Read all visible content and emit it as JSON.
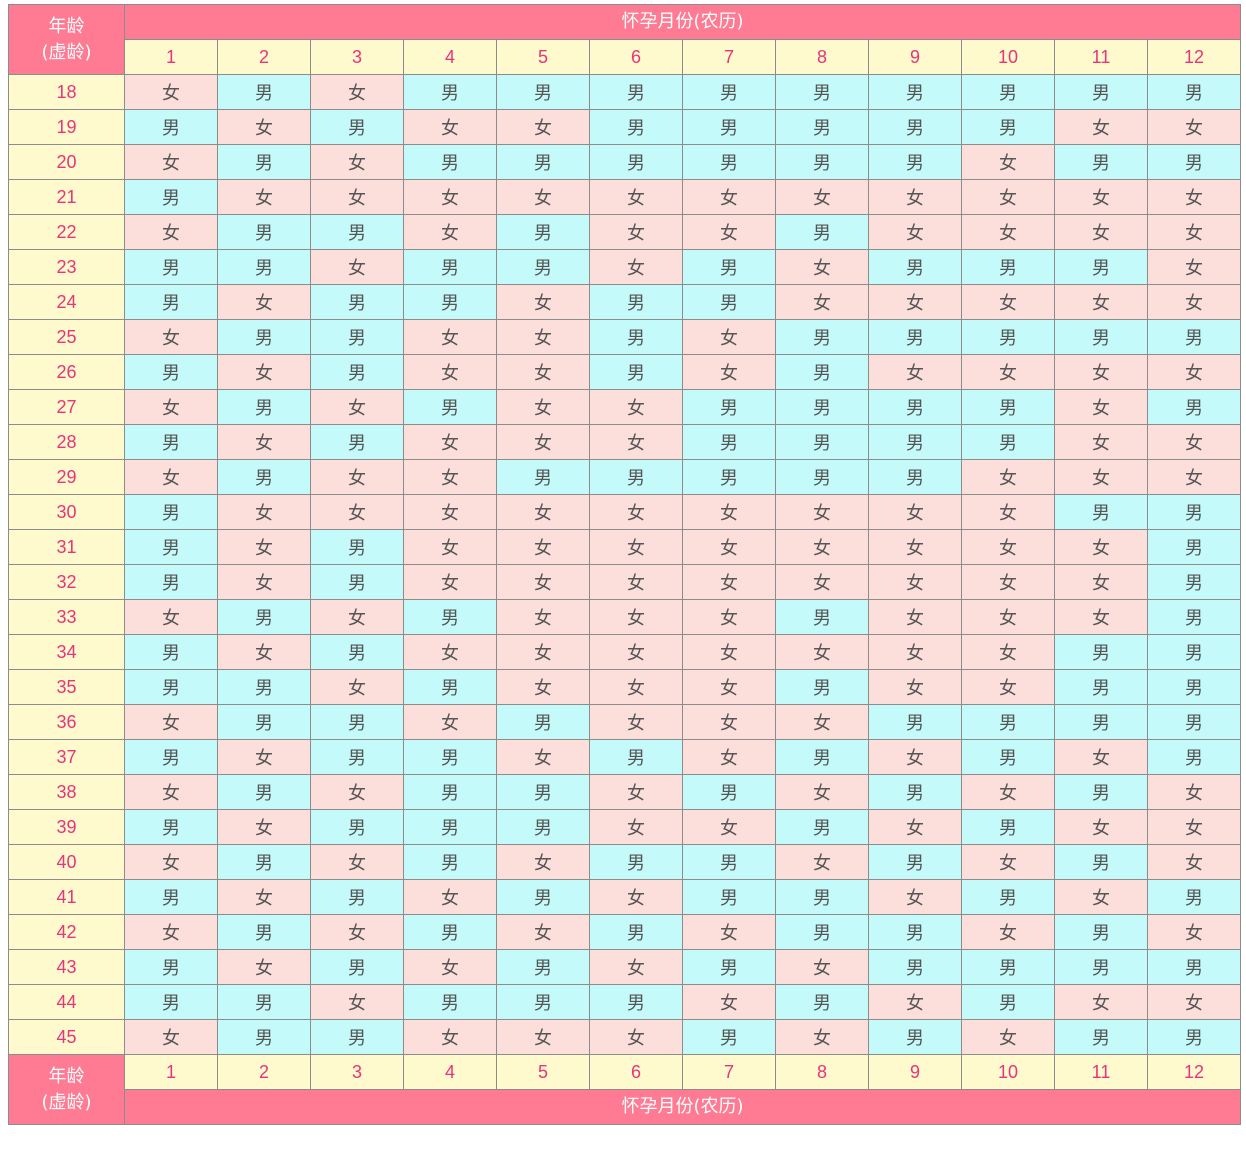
{
  "header": {
    "age_label_line1": "年龄",
    "age_label_line2": "(虚龄)",
    "month_title": "怀孕月份(农历)"
  },
  "months": [
    "1",
    "2",
    "3",
    "4",
    "5",
    "6",
    "7",
    "8",
    "9",
    "10",
    "11",
    "12"
  ],
  "legend": {
    "boy": "男",
    "girl": "女",
    "boy_color": "#c4fafa",
    "girl_color": "#fcdedb",
    "header_color": "#ff7a93",
    "label_bg": "#fffacd",
    "label_color": "#e8347a"
  },
  "rows": [
    {
      "age": "18",
      "cells": [
        "女",
        "男",
        "女",
        "男",
        "男",
        "男",
        "男",
        "男",
        "男",
        "男",
        "男",
        "男"
      ]
    },
    {
      "age": "19",
      "cells": [
        "男",
        "女",
        "男",
        "女",
        "女",
        "男",
        "男",
        "男",
        "男",
        "男",
        "女",
        "女"
      ]
    },
    {
      "age": "20",
      "cells": [
        "女",
        "男",
        "女",
        "男",
        "男",
        "男",
        "男",
        "男",
        "男",
        "女",
        "男",
        "男"
      ]
    },
    {
      "age": "21",
      "cells": [
        "男",
        "女",
        "女",
        "女",
        "女",
        "女",
        "女",
        "女",
        "女",
        "女",
        "女",
        "女"
      ]
    },
    {
      "age": "22",
      "cells": [
        "女",
        "男",
        "男",
        "女",
        "男",
        "女",
        "女",
        "男",
        "女",
        "女",
        "女",
        "女"
      ]
    },
    {
      "age": "23",
      "cells": [
        "男",
        "男",
        "女",
        "男",
        "男",
        "女",
        "男",
        "女",
        "男",
        "男",
        "男",
        "女"
      ]
    },
    {
      "age": "24",
      "cells": [
        "男",
        "女",
        "男",
        "男",
        "女",
        "男",
        "男",
        "女",
        "女",
        "女",
        "女",
        "女"
      ]
    },
    {
      "age": "25",
      "cells": [
        "女",
        "男",
        "男",
        "女",
        "女",
        "男",
        "女",
        "男",
        "男",
        "男",
        "男",
        "男"
      ]
    },
    {
      "age": "26",
      "cells": [
        "男",
        "女",
        "男",
        "女",
        "女",
        "男",
        "女",
        "男",
        "女",
        "女",
        "女",
        "女"
      ]
    },
    {
      "age": "27",
      "cells": [
        "女",
        "男",
        "女",
        "男",
        "女",
        "女",
        "男",
        "男",
        "男",
        "男",
        "女",
        "男"
      ]
    },
    {
      "age": "28",
      "cells": [
        "男",
        "女",
        "男",
        "女",
        "女",
        "女",
        "男",
        "男",
        "男",
        "男",
        "女",
        "女"
      ]
    },
    {
      "age": "29",
      "cells": [
        "女",
        "男",
        "女",
        "女",
        "男",
        "男",
        "男",
        "男",
        "男",
        "女",
        "女",
        "女"
      ]
    },
    {
      "age": "30",
      "cells": [
        "男",
        "女",
        "女",
        "女",
        "女",
        "女",
        "女",
        "女",
        "女",
        "女",
        "男",
        "男"
      ]
    },
    {
      "age": "31",
      "cells": [
        "男",
        "女",
        "男",
        "女",
        "女",
        "女",
        "女",
        "女",
        "女",
        "女",
        "女",
        "男"
      ]
    },
    {
      "age": "32",
      "cells": [
        "男",
        "女",
        "男",
        "女",
        "女",
        "女",
        "女",
        "女",
        "女",
        "女",
        "女",
        "男"
      ]
    },
    {
      "age": "33",
      "cells": [
        "女",
        "男",
        "女",
        "男",
        "女",
        "女",
        "女",
        "男",
        "女",
        "女",
        "女",
        "男"
      ]
    },
    {
      "age": "34",
      "cells": [
        "男",
        "女",
        "男",
        "女",
        "女",
        "女",
        "女",
        "女",
        "女",
        "女",
        "男",
        "男"
      ]
    },
    {
      "age": "35",
      "cells": [
        "男",
        "男",
        "女",
        "男",
        "女",
        "女",
        "女",
        "男",
        "女",
        "女",
        "男",
        "男"
      ]
    },
    {
      "age": "36",
      "cells": [
        "女",
        "男",
        "男",
        "女",
        "男",
        "女",
        "女",
        "女",
        "男",
        "男",
        "男",
        "男"
      ]
    },
    {
      "age": "37",
      "cells": [
        "男",
        "女",
        "男",
        "男",
        "女",
        "男",
        "女",
        "男",
        "女",
        "男",
        "女",
        "男"
      ]
    },
    {
      "age": "38",
      "cells": [
        "女",
        "男",
        "女",
        "男",
        "男",
        "女",
        "男",
        "女",
        "男",
        "女",
        "男",
        "女"
      ]
    },
    {
      "age": "39",
      "cells": [
        "男",
        "女",
        "男",
        "男",
        "男",
        "女",
        "女",
        "男",
        "女",
        "男",
        "女",
        "女"
      ]
    },
    {
      "age": "40",
      "cells": [
        "女",
        "男",
        "女",
        "男",
        "女",
        "男",
        "男",
        "女",
        "男",
        "女",
        "男",
        "女"
      ]
    },
    {
      "age": "41",
      "cells": [
        "男",
        "女",
        "男",
        "女",
        "男",
        "女",
        "男",
        "男",
        "女",
        "男",
        "女",
        "男"
      ]
    },
    {
      "age": "42",
      "cells": [
        "女",
        "男",
        "女",
        "男",
        "女",
        "男",
        "女",
        "男",
        "男",
        "女",
        "男",
        "女"
      ]
    },
    {
      "age": "43",
      "cells": [
        "男",
        "女",
        "男",
        "女",
        "男",
        "女",
        "男",
        "女",
        "男",
        "男",
        "男",
        "男"
      ]
    },
    {
      "age": "44",
      "cells": [
        "男",
        "男",
        "女",
        "男",
        "男",
        "男",
        "女",
        "男",
        "女",
        "男",
        "女",
        "女"
      ]
    },
    {
      "age": "45",
      "cells": [
        "女",
        "男",
        "男",
        "女",
        "女",
        "女",
        "男",
        "女",
        "男",
        "女",
        "男",
        "男"
      ]
    }
  ]
}
